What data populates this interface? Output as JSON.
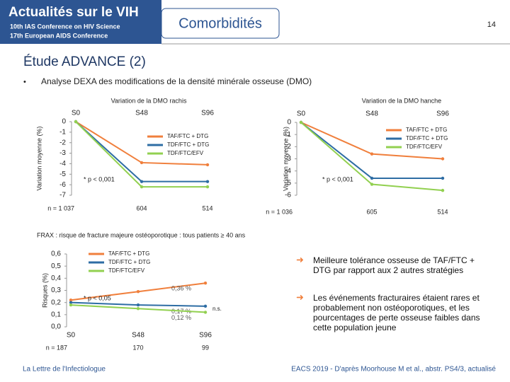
{
  "header": {
    "brand": "Actualités sur le VIH",
    "conf1": "10th IAS Conference on HIV Science",
    "conf2": "17th European AIDS Conference",
    "section": "Comorbidités",
    "page": "14"
  },
  "slide": {
    "title": "Étude ADVANCE (2)",
    "bullet": "Analyse DEXA des modifications de la densité minérale osseuse (DMO)",
    "points": [
      "Meilleure tolérance osseuse de TAF/FTC + DTG par rapport aux 2 autres stratégies",
      "Les événements fracturaires étaient rares et probablement non ostéoporotiques, et les pourcentages de perte osseuse faibles dans cette population jeune"
    ],
    "footer_left": "La Lettre de l'Infectiologue",
    "footer_right": "EACS 2019 - D'après Moorhouse M et al., abstr. PS4/3, actualisé"
  },
  "chart_data": [
    {
      "type": "line",
      "title": "Variation de la DMO rachis",
      "y_label": "Variation moyenne (%)",
      "categories": [
        "S0",
        "S48",
        "S96"
      ],
      "ylim": [
        -7,
        0
      ],
      "yticks": [
        0,
        -1,
        -2,
        -3,
        -4,
        -5,
        -6,
        -7
      ],
      "series": [
        {
          "name": "TAF/FTC + DTG",
          "color": "#f07f3c",
          "values": [
            0,
            -3.9,
            -4.1
          ]
        },
        {
          "name": "TDF/FTC + DTG",
          "color": "#2e6da4",
          "values": [
            0,
            -5.7,
            -5.7
          ]
        },
        {
          "name": "TDF/FTC/EFV",
          "color": "#92d050",
          "values": [
            0,
            -6.2,
            -6.2
          ]
        }
      ],
      "annotation": "* p < 0,001",
      "n_labels": [
        "n = 1 037",
        "604",
        "514"
      ]
    },
    {
      "type": "line",
      "title": "Variation de la DMO hanche",
      "y_label": "Variation moyenne (%)",
      "categories": [
        "S0",
        "S48",
        "S96"
      ],
      "ylim": [
        -6,
        0
      ],
      "yticks": [
        0,
        -1,
        -2,
        -3,
        -4,
        -5,
        -6
      ],
      "series": [
        {
          "name": "TAF/FTC + DTG",
          "color": "#f07f3c",
          "values": [
            0,
            -2.6,
            -3.0
          ]
        },
        {
          "name": "TDF/FTC + DTG",
          "color": "#2e6da4",
          "values": [
            0,
            -4.6,
            -4.6
          ]
        },
        {
          "name": "TDF/FTC/EFV",
          "color": "#92d050",
          "values": [
            0,
            -5.1,
            -5.6
          ]
        }
      ],
      "annotation": "* p < 0,001",
      "n_labels": [
        "n = 1 036",
        "605",
        "514"
      ]
    },
    {
      "type": "line",
      "title": "FRAX : risque de fracture majeure ostéoporotique : tous patients ≥ 40 ans",
      "y_label": "Risques (%)",
      "categories": [
        "S0",
        "S48",
        "S96"
      ],
      "ylim": [
        0,
        0.6
      ],
      "yticks": [
        {
          "value": 0.6,
          "label": "0,6"
        },
        {
          "value": 0.5,
          "label": "0,5"
        },
        {
          "value": 0.4,
          "label": "0,4"
        },
        {
          "value": 0.3,
          "label": "0,3"
        },
        {
          "value": 0.2,
          "label": "0,2"
        },
        {
          "value": 0.1,
          "label": "0,1"
        },
        {
          "value": 0,
          "label": "0,0"
        }
      ],
      "series": [
        {
          "name": "TAF/FTC + DTG",
          "color": "#f07f3c",
          "values": [
            0.22,
            0.29,
            0.36
          ],
          "value_labels": [
            null,
            null,
            "0,36 %"
          ]
        },
        {
          "name": "TDF/FTC + DTG",
          "color": "#2e6da4",
          "values": [
            0.2,
            0.18,
            0.17
          ],
          "value_labels": [
            null,
            null,
            "0,17 %"
          ]
        },
        {
          "name": "TDF/FTC/EFV",
          "color": "#92d050",
          "values": [
            0.18,
            0.15,
            0.12
          ],
          "value_labels": [
            null,
            null,
            "0,12 %"
          ]
        }
      ],
      "annotation": "* p < 0,05",
      "note": "n.s.",
      "n_labels": [
        "n = 187",
        "170",
        "99"
      ]
    }
  ]
}
